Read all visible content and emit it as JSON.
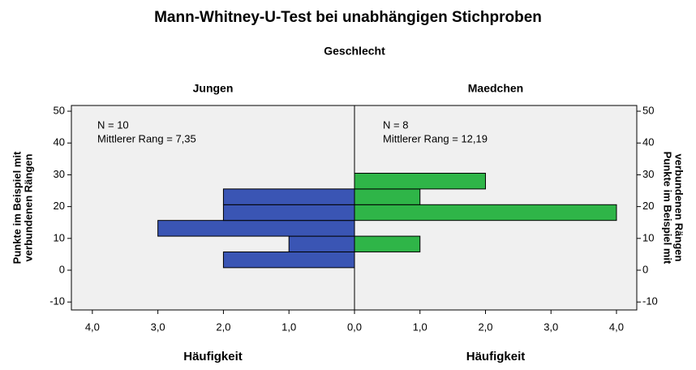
{
  "chart_data": {
    "type": "histogram",
    "title": "Mann-Whitney-U-Test bei unabhängigen Stichproben",
    "subtitle": "Geschlecht",
    "ylabel": [
      "Punkte im Beispiel mit",
      "verbundenen Rängen"
    ],
    "bins": [
      0.8,
      5.75,
      10.7,
      15.65,
      20.6,
      25.55,
      30.5
    ],
    "ylim": [
      -12.5,
      51.8
    ],
    "yticks": [
      -10,
      0,
      10,
      20,
      30,
      40,
      50
    ],
    "panels": [
      {
        "name": "Jungen",
        "color": "#3a55b4",
        "values": [
          2,
          1,
          3,
          2,
          2,
          0
        ],
        "annotations": [
          "N = 10",
          "Mittlerer Rang = 7,35"
        ],
        "xlabel": "Häufigkeit",
        "xlim": [
          4.32,
          0
        ],
        "xticks": [
          {
            "value": 4,
            "label": "4,0"
          },
          {
            "value": 3,
            "label": "3,0"
          },
          {
            "value": 2,
            "label": "2,0"
          },
          {
            "value": 1,
            "label": "1,0"
          },
          {
            "value": 0,
            "label": "0,0"
          }
        ]
      },
      {
        "name": "Maedchen",
        "color": "#2fb548",
        "values": [
          0,
          1,
          0,
          4,
          1,
          2
        ],
        "annotations": [
          "N = 8",
          "Mittlerer Rang = 12,19"
        ],
        "xlabel": "Häufigkeit",
        "xlim": [
          0,
          4.31
        ],
        "xticks": [
          {
            "value": 1,
            "label": "1,0"
          },
          {
            "value": 2,
            "label": "2,0"
          },
          {
            "value": 3,
            "label": "3,0"
          },
          {
            "value": 4,
            "label": "4,0"
          }
        ]
      }
    ]
  }
}
